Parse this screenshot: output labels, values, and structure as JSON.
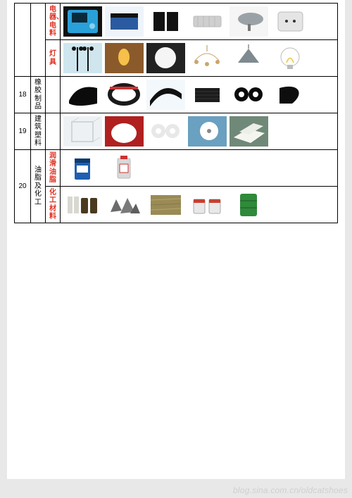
{
  "watermark": "blog.sina.com.cn/oldcatshoes",
  "colors": {
    "page_bg": "#ffffff",
    "outer_bg": "#e8e8e8",
    "border": "#000000",
    "label_red": "#e03020",
    "label_black": "#000000"
  },
  "rows": [
    {
      "number": "",
      "name": "",
      "name_color": "black",
      "subrows": [
        {
          "sub": "电器、电料",
          "sub_color": "red",
          "thumbs": [
            {
              "name": "meter-device",
              "bg": "#111111",
              "fg": "#2aa0d8"
            },
            {
              "name": "terminal-block-blue",
              "bg": "#eef4fa",
              "fg": "#2b5aa0"
            },
            {
              "name": "ct-block",
              "bg": "#ffffff",
              "fg": "#111111"
            },
            {
              "name": "connector-white",
              "bg": "#ffffff",
              "fg": "#cfcfcf"
            },
            {
              "name": "spotlight",
              "bg": "#f5f5f5",
              "fg": "#9aa2a8"
            },
            {
              "name": "wall-socket",
              "bg": "#ffffff",
              "fg": "#e5e5e5"
            }
          ]
        },
        {
          "sub": "灯具",
          "sub_color": "red",
          "thumbs": [
            {
              "name": "street-lamp",
              "bg": "#cfe6ef",
              "fg": "#111111"
            },
            {
              "name": "wall-lamp",
              "bg": "#8a5a2b",
              "fg": "#f6c04a"
            },
            {
              "name": "ceiling-round",
              "bg": "#222222",
              "fg": "#f5f5f5"
            },
            {
              "name": "chandelier",
              "bg": "#ffffff",
              "fg": "#caa66a"
            },
            {
              "name": "pendant-shade",
              "bg": "#ffffff",
              "fg": "#7e8a8f"
            },
            {
              "name": "bulb",
              "bg": "#ffffff",
              "fg": "#f0d060"
            }
          ]
        }
      ]
    },
    {
      "number": "18",
      "name": "橡胶制品",
      "name_color": "black",
      "subrows": [
        {
          "sub": "",
          "sub_color": "black",
          "thumbs": [
            {
              "name": "rubber-sheet",
              "bg": "#ffffff",
              "fg": "#0b0b0b"
            },
            {
              "name": "v-belt",
              "bg": "#ffffff",
              "fg": "#1a1a1a"
            },
            {
              "name": "rubber-strip",
              "bg": "#f2f8fb",
              "fg": "#111111"
            },
            {
              "name": "rubber-mat",
              "bg": "#ffffff",
              "fg": "#1c1c1c"
            },
            {
              "name": "gasket-rings",
              "bg": "#ffffff",
              "fg": "#0a0a0a"
            },
            {
              "name": "rubber-roll",
              "bg": "#ffffff",
              "fg": "#0e0e0e"
            }
          ]
        }
      ]
    },
    {
      "number": "19",
      "name": "建筑塑料",
      "name_color": "black",
      "subrows": [
        {
          "sub": "",
          "sub_color": "black",
          "thumbs": [
            {
              "name": "acrylic-box",
              "bg": "#eef1f3",
              "fg": "#cdd6da"
            },
            {
              "name": "plastic-pellets",
              "bg": "#b02020",
              "fg": "#ffffff"
            },
            {
              "name": "ptfe-gaskets",
              "bg": "#ffffff",
              "fg": "#e8e8e8"
            },
            {
              "name": "plastic-pulley",
              "bg": "#6aa0c0",
              "fg": "#ffffff"
            },
            {
              "name": "foam-boards",
              "bg": "#6f8878",
              "fg": "#f5f5f0"
            }
          ]
        }
      ]
    },
    {
      "number": "20",
      "name": "油脂及化工",
      "name_color": "black",
      "subrows": [
        {
          "sub": "润滑油脂",
          "sub_color": "red",
          "thumbs": [
            {
              "name": "oil-bucket-blue",
              "bg": "#ffffff",
              "fg": "#1f5fb0"
            },
            {
              "name": "oil-can-white",
              "bg": "#ffffff",
              "fg": "#d8d8d8"
            },
            {
              "name": "empty-1",
              "bg": "#ffffff",
              "fg": "#ffffff"
            },
            {
              "name": "empty-2",
              "bg": "#ffffff",
              "fg": "#ffffff"
            }
          ]
        },
        {
          "sub": "化工材料",
          "sub_color": "red",
          "thumbs": [
            {
              "name": "reagent-bottles",
              "bg": "#ffffff",
              "fg": "#4a3a20"
            },
            {
              "name": "crushed-stone",
              "bg": "#ffffff",
              "fg": "#6b6b6b"
            },
            {
              "name": "fiber-mat",
              "bg": "#ffffff",
              "fg": "#9a8a55"
            },
            {
              "name": "paint-cans",
              "bg": "#ffffff",
              "fg": "#c84030"
            },
            {
              "name": "drum-green",
              "bg": "#ffffff",
              "fg": "#2f8a3a"
            }
          ]
        }
      ]
    }
  ]
}
